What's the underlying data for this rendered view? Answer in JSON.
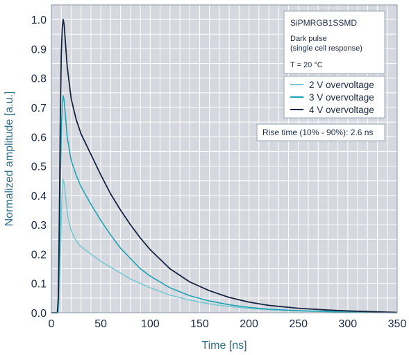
{
  "chart_data": {
    "type": "line",
    "xlabel": "Time [ns]",
    "ylabel": "Normalized amplitude [a.u.]",
    "xlim": [
      0,
      350
    ],
    "ylim": [
      0,
      1.05
    ],
    "x_ticks": [
      "0",
      "50",
      "100",
      "150",
      "200",
      "250",
      "300",
      "350"
    ],
    "y_ticks": [
      "0.0",
      "0.1",
      "0.2",
      "0.3",
      "0.4",
      "0.5",
      "0.6",
      "0.7",
      "0.8",
      "0.9",
      "1.0"
    ],
    "grid": true,
    "info_box": {
      "title": "SiPMRGB1SSMD",
      "line1": "Dark pulse",
      "line2": "(single cell response)",
      "line3": "T = 20 °C"
    },
    "legend_position": "top-right",
    "annotation": "Rise time (10% - 90%): 2.6 ns",
    "colors": {
      "plot_bg": "#d6d8df",
      "grid": "#ffffff",
      "axis_text": "#1a2a45",
      "axis_label": "#2f6f8a"
    },
    "series": [
      {
        "name": "2 V overvoltage",
        "color": "#7ac9d2",
        "x": [
          0,
          7,
          8,
          9,
          10,
          11,
          12,
          13,
          14,
          15,
          17,
          20,
          25,
          30,
          40,
          50,
          60,
          70,
          80,
          90,
          100,
          120,
          140,
          160,
          180,
          200,
          220,
          250,
          280,
          300,
          320,
          340,
          350
        ],
        "y": [
          0,
          0,
          0.05,
          0.18,
          0.32,
          0.42,
          0.455,
          0.44,
          0.41,
          0.37,
          0.32,
          0.28,
          0.245,
          0.225,
          0.2,
          0.175,
          0.155,
          0.135,
          0.115,
          0.1,
          0.085,
          0.06,
          0.043,
          0.03,
          0.021,
          0.015,
          0.01,
          0.006,
          0.003,
          0.002,
          0.001,
          0.0005,
          0
        ]
      },
      {
        "name": "3 V overvoltage",
        "color": "#1fa3b4",
        "x": [
          0,
          6,
          7,
          8,
          9,
          10,
          11,
          12,
          13,
          14,
          16,
          20,
          25,
          30,
          40,
          50,
          60,
          70,
          80,
          90,
          100,
          120,
          140,
          160,
          180,
          200,
          220,
          250,
          280,
          300,
          320,
          340,
          350
        ],
        "y": [
          0,
          0,
          0.03,
          0.18,
          0.42,
          0.62,
          0.72,
          0.74,
          0.72,
          0.68,
          0.6,
          0.52,
          0.47,
          0.43,
          0.37,
          0.315,
          0.265,
          0.22,
          0.185,
          0.15,
          0.125,
          0.085,
          0.058,
          0.04,
          0.027,
          0.018,
          0.012,
          0.007,
          0.004,
          0.002,
          0.001,
          0.0005,
          0
        ]
      },
      {
        "name": "4 V overvoltage",
        "color": "#16243f",
        "x": [
          0,
          6,
          7,
          8,
          9,
          10,
          11,
          12,
          13,
          14,
          16,
          20,
          25,
          30,
          40,
          50,
          60,
          70,
          80,
          90,
          100,
          120,
          140,
          160,
          180,
          200,
          220,
          250,
          280,
          300,
          320,
          340,
          350
        ],
        "y": [
          0,
          0,
          0.05,
          0.3,
          0.65,
          0.88,
          0.97,
          1.0,
          0.98,
          0.93,
          0.84,
          0.73,
          0.66,
          0.61,
          0.54,
          0.47,
          0.405,
          0.35,
          0.3,
          0.255,
          0.215,
          0.15,
          0.105,
          0.075,
          0.052,
          0.036,
          0.025,
          0.015,
          0.009,
          0.006,
          0.004,
          0.002,
          0.001
        ]
      }
    ]
  }
}
